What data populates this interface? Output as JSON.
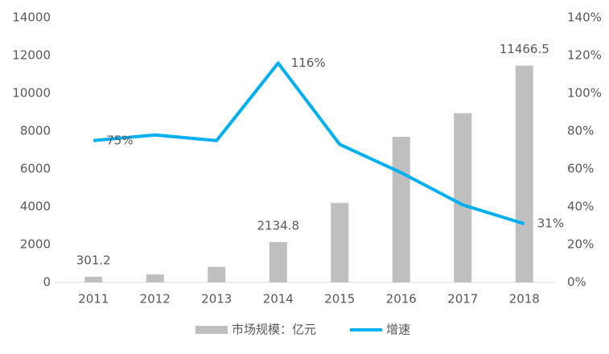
{
  "chart_data": {
    "type": "bar",
    "categories": [
      "2011",
      "2012",
      "2013",
      "2014",
      "2015",
      "2016",
      "2017",
      "2018"
    ],
    "series": [
      {
        "name": "市场规模：亿元",
        "type": "bar",
        "color": "#bfbfbf",
        "values": [
          301.2,
          420,
          820,
          2134.8,
          4200,
          7700,
          8950,
          11466.5
        ],
        "value_labels": [
          "301.2",
          null,
          null,
          "2134.8",
          null,
          null,
          null,
          "11466.5"
        ]
      },
      {
        "name": "增速",
        "type": "line",
        "axis": "y2",
        "color": "#00b0f0",
        "values": [
          75,
          78,
          75,
          116,
          73,
          58,
          41,
          31
        ],
        "value_labels": [
          "75%",
          null,
          null,
          "116%",
          null,
          null,
          null,
          "31%"
        ]
      }
    ],
    "ylim": [
      0,
      14000
    ],
    "yticks": [
      0,
      2000,
      4000,
      6000,
      8000,
      10000,
      12000,
      14000
    ],
    "y2lim": [
      0,
      140
    ],
    "y2ticks": [
      {
        "value": 0,
        "label": "0%"
      },
      {
        "value": 20,
        "label": "20%"
      },
      {
        "value": 40,
        "label": "40%"
      },
      {
        "value": 60,
        "label": "60%"
      },
      {
        "value": 80,
        "label": "80%"
      },
      {
        "value": 100,
        "label": "100%"
      },
      {
        "value": 120,
        "label": "120%"
      },
      {
        "value": 140,
        "label": "140%"
      }
    ],
    "legend": "bottom"
  }
}
